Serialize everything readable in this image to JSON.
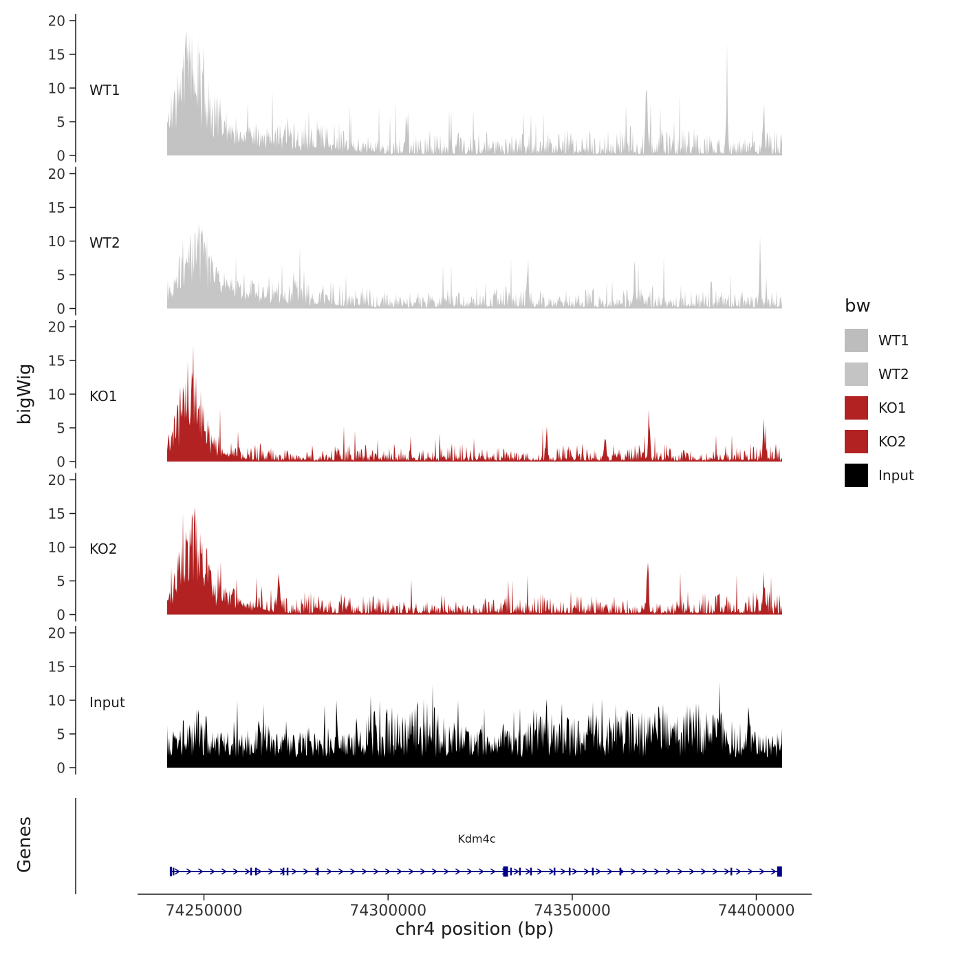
{
  "figure": {
    "background": "#ffffff",
    "axis_color": "#1a1a1a",
    "text_color": "#333333"
  },
  "chart_data": {
    "type": "area",
    "subtype": "genome-browser-coverage-tracks",
    "title": "",
    "xlabel": "chr4 position (bp)",
    "ylabel": "bigWig",
    "x_domain": [
      74240000,
      74407000
    ],
    "x_ticks": [
      74250000,
      74300000,
      74350000,
      74400000
    ],
    "x_tick_labels": [
      "74250000",
      "74300000",
      "74350000",
      "74400000"
    ],
    "y_ticks": [
      0,
      5,
      10,
      15,
      20
    ],
    "ylim": [
      0,
      20
    ],
    "grid": false,
    "legend": {
      "title": "bw",
      "position": "right",
      "entries": [
        {
          "label": "WT1",
          "color": "#bdbdbd"
        },
        {
          "label": "WT2",
          "color": "#c4c4c4"
        },
        {
          "label": "KO1",
          "color": "#b22222"
        },
        {
          "label": "KO2",
          "color": "#b22222"
        },
        {
          "label": "Input",
          "color": "#000000"
        }
      ]
    },
    "tracks": [
      {
        "name": "WT1",
        "color": "#c3c3c3",
        "seed": 11,
        "floor": 0.2,
        "baseline": 3.6,
        "power": 2.2,
        "spike_prob": 0.05,
        "spike_amp": 7,
        "promoter": {
          "center": 74246500,
          "sigma": 4200,
          "height": 19,
          "tail": 16000
        },
        "tall_spikes": [
          {
            "x": 74305000,
            "h": 6.5
          },
          {
            "x": 74370200,
            "h": 11.5
          },
          {
            "x": 74392000,
            "h": 10.5
          },
          {
            "x": 74402000,
            "h": 7
          }
        ],
        "description": "Noisy coverage 0-7 with large promoter peak reaching ~19 near 74246000 and isolated spikes to ~12 near 74370000"
      },
      {
        "name": "WT2",
        "color": "#c6c6c6",
        "seed": 22,
        "floor": 0.2,
        "baseline": 3.4,
        "power": 2.1,
        "spike_prob": 0.05,
        "spike_amp": 6,
        "promoter": {
          "center": 74248000,
          "sigma": 4500,
          "height": 12,
          "tail": 14000
        },
        "tall_spikes": [
          {
            "x": 74338000,
            "h": 7.5
          },
          {
            "x": 74367000,
            "h": 7
          },
          {
            "x": 74401000,
            "h": 6.5
          }
        ],
        "description": "Noisy coverage 0-6 with promoter peak reaching ~12 near 74248000"
      },
      {
        "name": "KO1",
        "color": "#b22222",
        "seed": 33,
        "floor": 0.15,
        "baseline": 2.4,
        "power": 2.4,
        "spike_prob": 0.04,
        "spike_amp": 4.5,
        "promoter": {
          "center": 74246500,
          "sigma": 3300,
          "height": 13.5,
          "tail": 5000
        },
        "tall_spikes": [
          {
            "x": 74343000,
            "h": 5.5
          },
          {
            "x": 74359000,
            "h": 5.5
          },
          {
            "x": 74371000,
            "h": 6
          },
          {
            "x": 74402000,
            "h": 6
          }
        ],
        "description": "Low coverage 0-4 with sharp promoter block reaching ~13.5 near 74246000, dropping off by ~74256000"
      },
      {
        "name": "KO2",
        "color": "#b22222",
        "seed": 44,
        "floor": 0.2,
        "baseline": 2.8,
        "power": 2.3,
        "spike_prob": 0.045,
        "spike_amp": 5,
        "promoter": {
          "center": 74247000,
          "sigma": 3600,
          "height": 15.5,
          "tail": 8000
        },
        "tall_spikes": [
          {
            "x": 74270300,
            "h": 7
          },
          {
            "x": 74370500,
            "h": 9
          },
          {
            "x": 74402000,
            "h": 5.5
          }
        ],
        "description": "Low coverage 0-5 with promoter block reaching ~15.5 near 74247000 and a spike ~9 near 74370000"
      },
      {
        "name": "Input",
        "color": "#000000",
        "seed": 55,
        "floor": 1.5,
        "baseline": 7.0,
        "power": 1.1,
        "spike_prob": 0.07,
        "spike_amp": 5,
        "promoter": null,
        "tall_spikes": [
          {
            "x": 74286000,
            "h": 6.5
          },
          {
            "x": 74398000,
            "h": 8
          }
        ],
        "description": "Uniform dense background coverage ~2-9 across the whole locus with occasional spikes to ~13"
      }
    ],
    "genes": {
      "panel_label": "Genes",
      "gene": {
        "name": "Kdm4c",
        "start": 74241000,
        "end": 74406800,
        "strand": "+",
        "color": "#00008b",
        "exons": [
          {
            "pos": 74241700
          },
          {
            "pos": 74262800
          },
          {
            "pos": 74264100
          },
          {
            "pos": 74271600
          },
          {
            "pos": 74272700
          },
          {
            "pos": 74280900
          },
          {
            "pos": 74331900,
            "thick": true
          },
          {
            "pos": 74333400
          },
          {
            "pos": 74335800
          },
          {
            "pos": 74338800
          },
          {
            "pos": 74345200
          },
          {
            "pos": 74349300
          },
          {
            "pos": 74355600
          },
          {
            "pos": 74363100
          },
          {
            "pos": 74393200
          },
          {
            "pos": 74406300,
            "thick": true
          }
        ]
      }
    }
  }
}
